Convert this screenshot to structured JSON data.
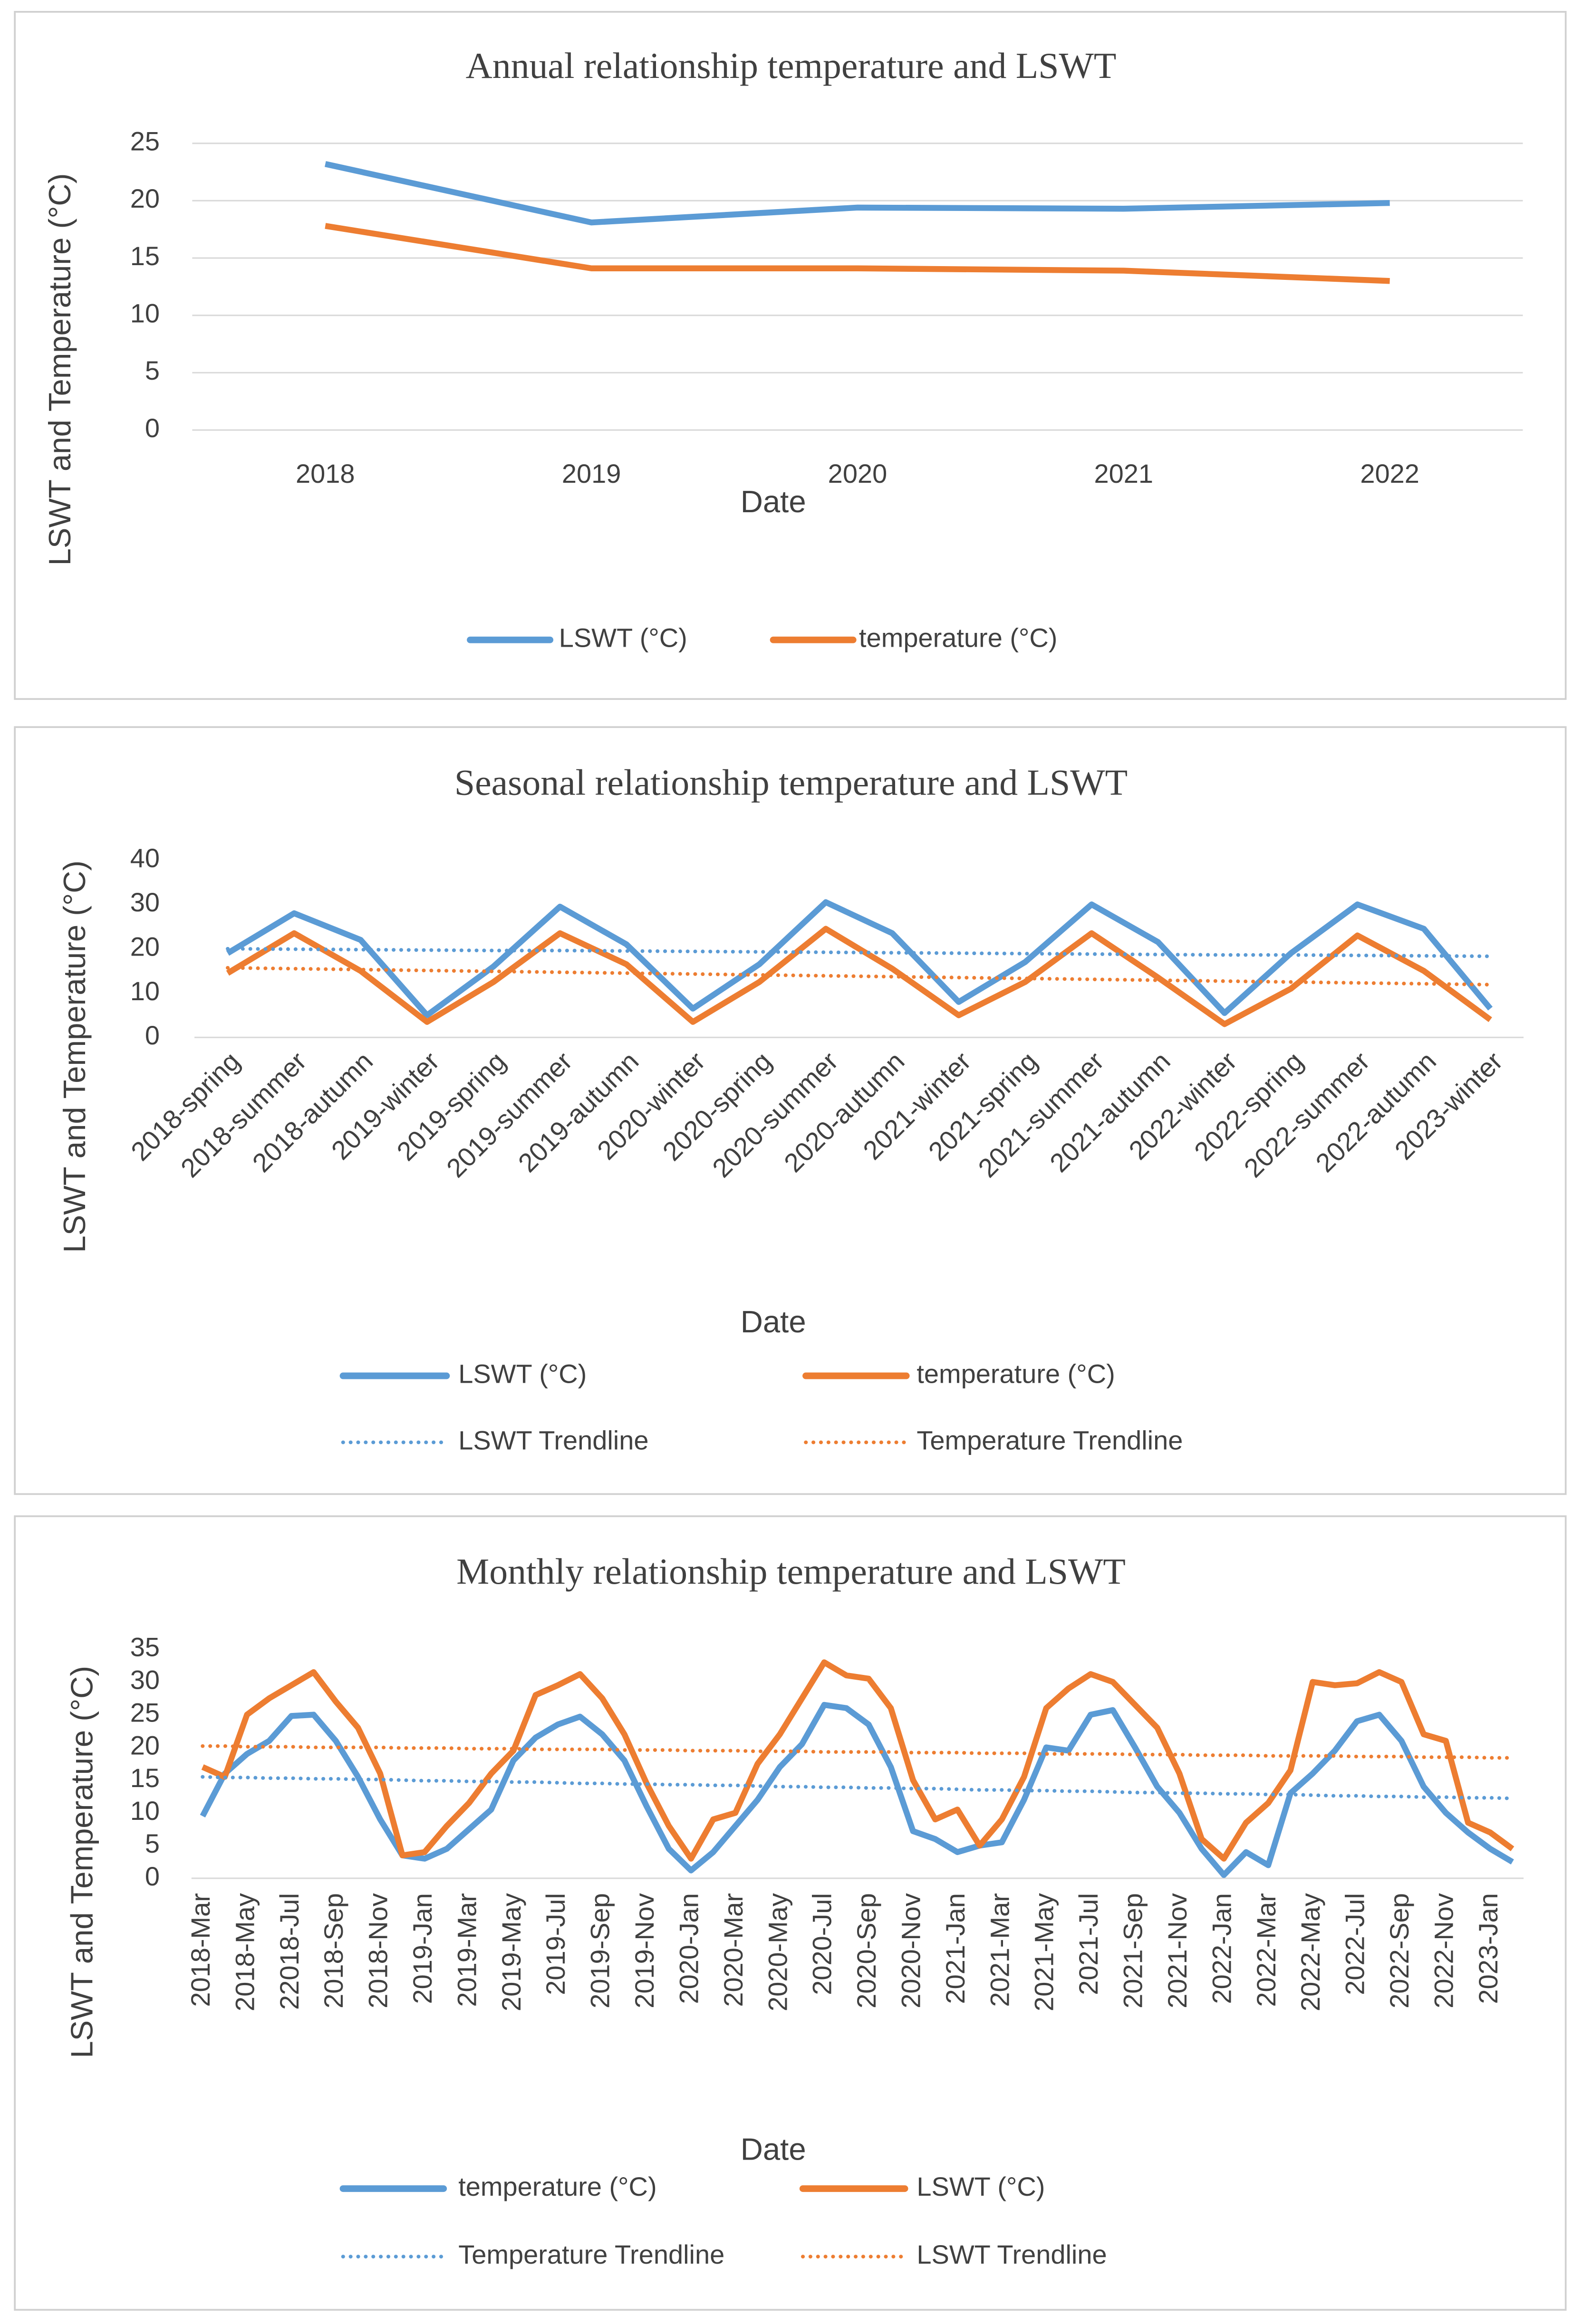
{
  "chart_data": [
    {
      "type": "line",
      "title": "Annual relationship temperature and LSWT",
      "x_label": "Date",
      "y_label": "LSWT and Temperature (°C)",
      "categories": [
        "2018",
        "2019",
        "2020",
        "2021",
        "2022"
      ],
      "series": [
        {
          "name": "LSWT (°C)",
          "color": "#5b9bd5",
          "line_style": "solid",
          "values": [
            23.2,
            18.1,
            19.4,
            19.3,
            19.8
          ]
        },
        {
          "name": "temperature (°C)",
          "color": "#ed7d31",
          "line_style": "solid",
          "values": [
            17.8,
            14.1,
            14.1,
            13.9,
            13.0
          ]
        }
      ],
      "ylim": [
        0,
        25
      ],
      "yticks": [
        0,
        5,
        10,
        15,
        20,
        25
      ],
      "grid": true,
      "legend": "bottom"
    },
    {
      "type": "line",
      "title": "Seasonal relationship temperature and LSWT",
      "x_label": "Date",
      "y_label": "LSWT and Temperature (°C)",
      "categories": [
        "2018-spring",
        "2018-summer",
        "2018-autumn",
        "2019-winter",
        "2019-spring",
        "2019-summer",
        "2019-autumn",
        "2020-winter",
        "2020-spring",
        "2020-summer",
        "2020-autumn",
        "2021-winter",
        "2021-spring",
        "2021-summer",
        "2021-autumn",
        "2022-winter",
        "2022-spring",
        "2022-summer",
        "2022-autumn",
        "2023-winter"
      ],
      "series": [
        {
          "name": "LSWT (°C)",
          "color": "#5b9bd5",
          "line_style": "solid",
          "values": [
            19,
            28,
            22,
            5,
            16,
            29.5,
            21,
            6.5,
            16.5,
            30.5,
            23.5,
            8,
            17,
            30,
            21.5,
            5.5,
            19,
            30,
            24.5,
            6.5
          ]
        },
        {
          "name": "temperature (°C)",
          "color": "#ed7d31",
          "line_style": "solid",
          "values": [
            14.5,
            23.5,
            15,
            3.5,
            12.5,
            23.5,
            16.5,
            3.5,
            12.5,
            24.5,
            15.5,
            5,
            12.5,
            23.5,
            13.5,
            3,
            11,
            23,
            15,
            4
          ]
        },
        {
          "name": "LSWT Trendline",
          "color": "#5b9bd5",
          "line_style": "dotted",
          "values": [
            20.0,
            19.9,
            19.8,
            19.7,
            19.6,
            19.6,
            19.5,
            19.4,
            19.3,
            19.2,
            19.1,
            19.0,
            18.9,
            18.8,
            18.7,
            18.6,
            18.6,
            18.5,
            18.4,
            18.3
          ]
        },
        {
          "name": "Temperature Trendline",
          "color": "#ed7d31",
          "line_style": "dotted",
          "values": [
            15.7,
            15.5,
            15.3,
            15.1,
            14.9,
            14.7,
            14.5,
            14.3,
            14.1,
            13.9,
            13.7,
            13.5,
            13.3,
            13.1,
            12.9,
            12.7,
            12.5,
            12.3,
            12.1,
            11.9
          ]
        }
      ],
      "ylim": [
        0,
        40
      ],
      "yticks": [
        0,
        10,
        20,
        30,
        40
      ],
      "grid": false,
      "legend": "bottom"
    },
    {
      "type": "line",
      "title": "Monthly relationship temperature and LSWT",
      "x_label": "Date",
      "y_label": "LSWT and Temperature (°C)",
      "categories": [
        "2018-Mar",
        null,
        "2018-May",
        null,
        "22018-Jul",
        null,
        "2018-Sep",
        null,
        "2018-Nov",
        null,
        "2019-Jan",
        null,
        "2019-Mar",
        null,
        "2019-May",
        null,
        "2019-Jul",
        null,
        "2019-Sep",
        null,
        "2019-Nov",
        null,
        "2020-Jan",
        null,
        "2020-Mar",
        null,
        "2020-May",
        null,
        "2020-Jul",
        null,
        "2020-Sep",
        null,
        "2020-Nov",
        null,
        "2021-Jan",
        null,
        "2021-Mar",
        null,
        "2021-May",
        null,
        "2021-Jul",
        null,
        "2021-Sep",
        null,
        "2021-Nov",
        null,
        "2022-Jan",
        null,
        "2022-Mar",
        null,
        "2022-May",
        null,
        "2022-Jul",
        null,
        "2022-Sep",
        null,
        "2022-Nov",
        null,
        "2023-Jan",
        null
      ],
      "series": [
        {
          "name": "temperature (°C)",
          "color": "#5b9bd5",
          "line_style": "solid",
          "values": [
            9.5,
            16,
            19,
            21,
            24.8,
            25,
            21,
            15.5,
            9,
            3.5,
            3,
            4.5,
            7.5,
            10.5,
            18,
            21.5,
            23.5,
            24.7,
            22,
            18,
            11,
            4.5,
            1.2,
            4,
            8,
            12,
            17,
            20.5,
            26.5,
            26,
            23.5,
            17,
            7.2,
            6,
            4,
            5,
            5.5,
            12,
            20,
            19.5,
            25,
            25.7,
            20,
            14,
            10,
            4.5,
            0.5,
            4,
            2,
            13,
            16,
            19.5,
            24,
            25,
            21,
            14,
            10,
            7,
            4.5,
            2.5
          ]
        },
        {
          "name": "LSWT (°C)",
          "color": "#ed7d31",
          "line_style": "solid",
          "values": [
            17,
            15.5,
            25,
            27.5,
            29.5,
            31.5,
            27,
            23,
            16,
            3.5,
            4,
            8,
            11.5,
            16,
            19.5,
            28,
            29.5,
            31.2,
            27.5,
            22,
            14.5,
            8,
            3,
            9,
            10,
            17.5,
            22,
            27.5,
            33,
            31,
            30.5,
            26,
            15,
            9,
            10.5,
            5,
            9,
            15.5,
            26,
            29,
            31.2,
            30,
            26.5,
            23,
            16,
            6,
            3,
            8.5,
            11.5,
            16.5,
            30,
            29.5,
            29.8,
            31.5,
            30,
            22,
            21,
            8.5,
            7,
            4.5
          ]
        },
        {
          "name": "Temperature Trendline",
          "color": "#5b9bd5",
          "line_style": "dotted",
          "values": [
            15.5,
            15.4,
            15.4,
            15.3,
            15.3,
            15.2,
            15.2,
            15.1,
            15.1,
            15.0,
            14.9,
            14.9,
            14.8,
            14.8,
            14.7,
            14.7,
            14.6,
            14.5,
            14.5,
            14.4,
            14.4,
            14.3,
            14.3,
            14.2,
            14.2,
            14.1,
            14.0,
            14.0,
            13.9,
            13.9,
            13.8,
            13.8,
            13.7,
            13.7,
            13.6,
            13.5,
            13.5,
            13.4,
            13.4,
            13.3,
            13.3,
            13.2,
            13.1,
            13.1,
            13.0,
            13.0,
            12.9,
            12.9,
            12.8,
            12.8,
            12.7,
            12.6,
            12.6,
            12.5,
            12.5,
            12.4,
            12.4,
            12.3,
            12.3,
            12.2
          ]
        },
        {
          "name": "LSWT Trendline",
          "color": "#ed7d31",
          "line_style": "dotted",
          "values": [
            20.2,
            20.2,
            20.1,
            20.1,
            20.1,
            20.0,
            20.0,
            20.0,
            20.0,
            19.9,
            19.9,
            19.9,
            19.8,
            19.8,
            19.8,
            19.7,
            19.7,
            19.7,
            19.7,
            19.6,
            19.6,
            19.6,
            19.5,
            19.5,
            19.5,
            19.4,
            19.4,
            19.4,
            19.3,
            19.3,
            19.3,
            19.3,
            19.2,
            19.2,
            19.2,
            19.1,
            19.1,
            19.1,
            19.0,
            19.0,
            19.0,
            19.0,
            18.9,
            18.9,
            18.9,
            18.8,
            18.8,
            18.8,
            18.7,
            18.7,
            18.7,
            18.7,
            18.6,
            18.6,
            18.6,
            18.5,
            18.5,
            18.5,
            18.4,
            18.4
          ]
        }
      ],
      "ylim": [
        0,
        35
      ],
      "yticks": [
        0,
        5,
        10,
        15,
        20,
        25,
        30,
        35
      ],
      "grid": false,
      "legend": "bottom"
    }
  ]
}
